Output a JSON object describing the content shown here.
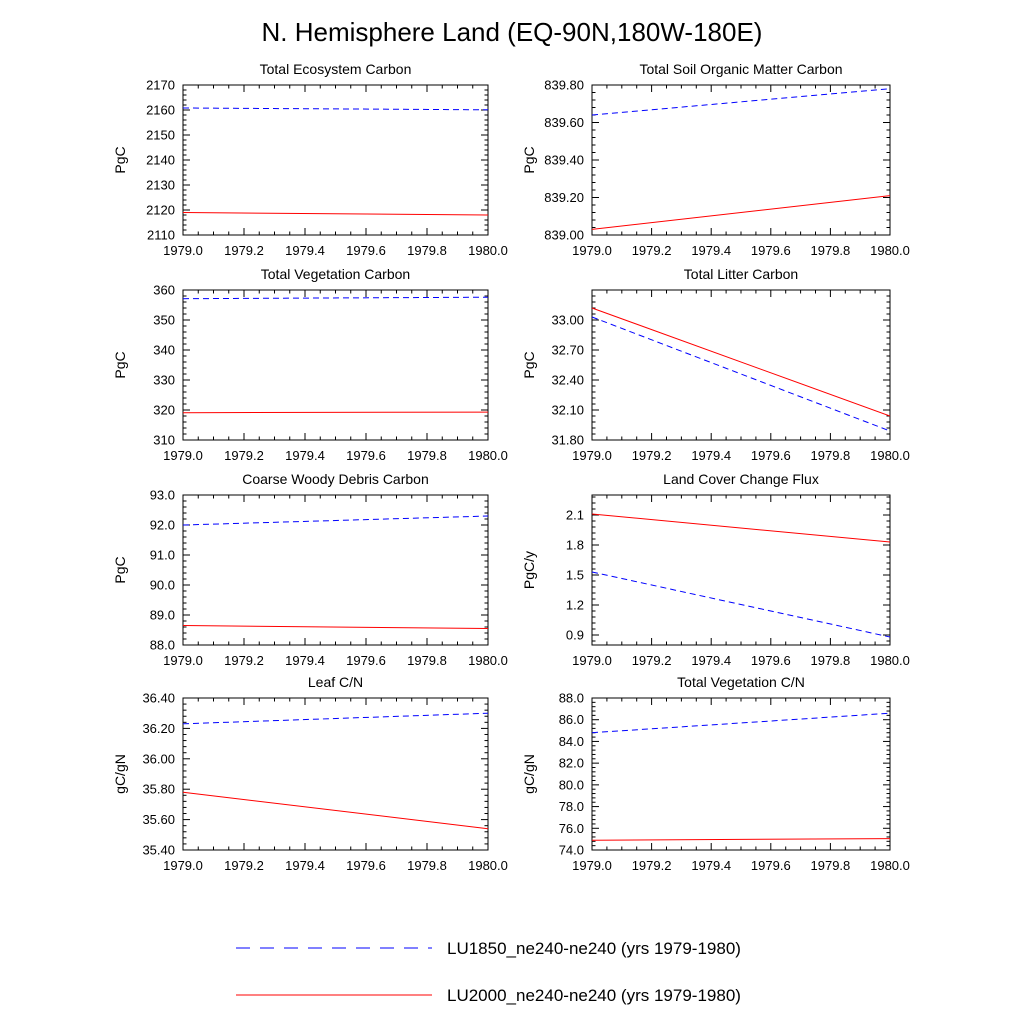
{
  "figure": {
    "title": "N. Hemisphere Land (EQ-90N,180W-180E)"
  },
  "legend": [
    {
      "label": "LU1850_ne240-ne240 (yrs 1979-1980)",
      "color": "#0000ff",
      "style": "dashed"
    },
    {
      "label": "LU2000_ne240-ne240 (yrs 1979-1980)",
      "color": "#ff0000",
      "style": "solid"
    }
  ],
  "chart_data": [
    {
      "type": "line",
      "title": "Total Ecosystem Carbon",
      "ylabel": "PgC",
      "xlim": [
        1979.0,
        1980.0
      ],
      "ylim": [
        2110,
        2170
      ],
      "xticks": [
        "1979.0",
        "1979.2",
        "1979.4",
        "1979.6",
        "1979.8",
        "1980.0"
      ],
      "yticks": [
        2110,
        2120,
        2130,
        2140,
        2150,
        2160,
        2170
      ],
      "ytick_decimals": 0,
      "series": [
        {
          "name": "LU1850_ne240-ne240 (yrs 1979-1980)",
          "color": "#0000ff",
          "dashed": true,
          "x": [
            1979.0,
            1980.0
          ],
          "y": [
            2160.8,
            2160.1
          ]
        },
        {
          "name": "LU2000_ne240-ne240 (yrs 1979-1980)",
          "color": "#ff0000",
          "dashed": false,
          "x": [
            1979.0,
            1980.0
          ],
          "y": [
            2119.0,
            2118.0
          ]
        }
      ]
    },
    {
      "type": "line",
      "title": "Total Soil Organic Matter Carbon",
      "ylabel": "PgC",
      "xlim": [
        1979.0,
        1980.0
      ],
      "ylim": [
        839.0,
        839.8
      ],
      "xticks": [
        "1979.0",
        "1979.2",
        "1979.4",
        "1979.6",
        "1979.8",
        "1980.0"
      ],
      "yticks": [
        839.0,
        839.2,
        839.4,
        839.6,
        839.8
      ],
      "ytick_decimals": 2,
      "series": [
        {
          "name": "LU1850_ne240-ne240 (yrs 1979-1980)",
          "color": "#0000ff",
          "dashed": true,
          "x": [
            1979.0,
            1980.0
          ],
          "y": [
            839.64,
            839.78
          ]
        },
        {
          "name": "LU2000_ne240-ne240 (yrs 1979-1980)",
          "color": "#ff0000",
          "dashed": false,
          "x": [
            1979.0,
            1980.0
          ],
          "y": [
            839.03,
            839.21
          ]
        }
      ]
    },
    {
      "type": "line",
      "title": "Total Vegetation Carbon",
      "ylabel": "PgC",
      "xlim": [
        1979.0,
        1980.0
      ],
      "ylim": [
        310,
        360
      ],
      "xticks": [
        "1979.0",
        "1979.2",
        "1979.4",
        "1979.6",
        "1979.8",
        "1980.0"
      ],
      "yticks": [
        310,
        320,
        330,
        340,
        350,
        360
      ],
      "ytick_decimals": 0,
      "series": [
        {
          "name": "LU1850_ne240-ne240 (yrs 1979-1980)",
          "color": "#0000ff",
          "dashed": true,
          "x": [
            1979.0,
            1980.0
          ],
          "y": [
            357.1,
            357.6
          ]
        },
        {
          "name": "LU2000_ne240-ne240 (yrs 1979-1980)",
          "color": "#ff0000",
          "dashed": false,
          "x": [
            1979.0,
            1980.0
          ],
          "y": [
            319.1,
            319.3
          ]
        }
      ]
    },
    {
      "type": "line",
      "title": "Total Litter Carbon",
      "ylabel": "PgC",
      "xlim": [
        1979.0,
        1980.0
      ],
      "ylim": [
        31.8,
        33.3
      ],
      "xticks": [
        "1979.0",
        "1979.2",
        "1979.4",
        "1979.6",
        "1979.8",
        "1980.0"
      ],
      "yticks": [
        31.8,
        32.1,
        32.4,
        32.7,
        33.0
      ],
      "ytick_decimals": 2,
      "series": [
        {
          "name": "LU1850_ne240-ne240 (yrs 1979-1980)",
          "color": "#0000ff",
          "dashed": true,
          "x": [
            1979.0,
            1980.0
          ],
          "y": [
            33.03,
            31.89
          ]
        },
        {
          "name": "LU2000_ne240-ne240 (yrs 1979-1980)",
          "color": "#ff0000",
          "dashed": false,
          "x": [
            1979.0,
            1980.0
          ],
          "y": [
            33.12,
            32.04
          ]
        }
      ]
    },
    {
      "type": "line",
      "title": "Coarse Woody Debris Carbon",
      "ylabel": "PgC",
      "xlim": [
        1979.0,
        1980.0
      ],
      "ylim": [
        88.0,
        93.0
      ],
      "xticks": [
        "1979.0",
        "1979.2",
        "1979.4",
        "1979.6",
        "1979.8",
        "1980.0"
      ],
      "yticks": [
        88.0,
        89.0,
        90.0,
        91.0,
        92.0,
        93.0
      ],
      "ytick_decimals": 1,
      "series": [
        {
          "name": "LU1850_ne240-ne240 (yrs 1979-1980)",
          "color": "#0000ff",
          "dashed": true,
          "x": [
            1979.0,
            1980.0
          ],
          "y": [
            92.0,
            92.3
          ]
        },
        {
          "name": "LU2000_ne240-ne240 (yrs 1979-1980)",
          "color": "#ff0000",
          "dashed": false,
          "x": [
            1979.0,
            1980.0
          ],
          "y": [
            88.65,
            88.55
          ]
        }
      ]
    },
    {
      "type": "line",
      "title": "Land Cover Change Flux",
      "ylabel": "PgC/y",
      "xlim": [
        1979.0,
        1980.0
      ],
      "ylim": [
        0.8,
        2.3
      ],
      "xticks": [
        "1979.0",
        "1979.2",
        "1979.4",
        "1979.6",
        "1979.8",
        "1980.0"
      ],
      "yticks": [
        0.9,
        1.2,
        1.5,
        1.8,
        2.1
      ],
      "ytick_decimals": 1,
      "series": [
        {
          "name": "LU1850_ne240-ne240 (yrs 1979-1980)",
          "color": "#0000ff",
          "dashed": true,
          "x": [
            1979.0,
            1980.0
          ],
          "y": [
            1.53,
            0.88
          ]
        },
        {
          "name": "LU2000_ne240-ne240 (yrs 1979-1980)",
          "color": "#ff0000",
          "dashed": false,
          "x": [
            1979.0,
            1980.0
          ],
          "y": [
            2.11,
            1.83
          ]
        }
      ]
    },
    {
      "type": "line",
      "title": "Leaf C/N",
      "ylabel": "gC/gN",
      "xlim": [
        1979.0,
        1980.0
      ],
      "ylim": [
        35.4,
        36.4
      ],
      "xticks": [
        "1979.0",
        "1979.2",
        "1979.4",
        "1979.6",
        "1979.8",
        "1980.0"
      ],
      "yticks": [
        35.4,
        35.6,
        35.8,
        36.0,
        36.2,
        36.4
      ],
      "ytick_decimals": 2,
      "series": [
        {
          "name": "LU1850_ne240-ne240 (yrs 1979-1980)",
          "color": "#0000ff",
          "dashed": true,
          "x": [
            1979.0,
            1980.0
          ],
          "y": [
            36.23,
            36.3
          ]
        },
        {
          "name": "LU2000_ne240-ne240 (yrs 1979-1980)",
          "color": "#ff0000",
          "dashed": false,
          "x": [
            1979.0,
            1980.0
          ],
          "y": [
            35.78,
            35.54
          ]
        }
      ]
    },
    {
      "type": "line",
      "title": "Total Vegetation C/N",
      "ylabel": "gC/gN",
      "xlim": [
        1979.0,
        1980.0
      ],
      "ylim": [
        74.0,
        88.0
      ],
      "xticks": [
        "1979.0",
        "1979.2",
        "1979.4",
        "1979.6",
        "1979.8",
        "1980.0"
      ],
      "yticks": [
        74.0,
        76.0,
        78.0,
        80.0,
        82.0,
        84.0,
        86.0,
        88.0
      ],
      "ytick_decimals": 1,
      "series": [
        {
          "name": "LU1850_ne240-ne240 (yrs 1979-1980)",
          "color": "#0000ff",
          "dashed": true,
          "x": [
            1979.0,
            1980.0
          ],
          "y": [
            84.8,
            86.6
          ]
        },
        {
          "name": "LU2000_ne240-ne240 (yrs 1979-1980)",
          "color": "#ff0000",
          "dashed": false,
          "x": [
            1979.0,
            1980.0
          ],
          "y": [
            74.9,
            75.05
          ]
        }
      ]
    }
  ]
}
